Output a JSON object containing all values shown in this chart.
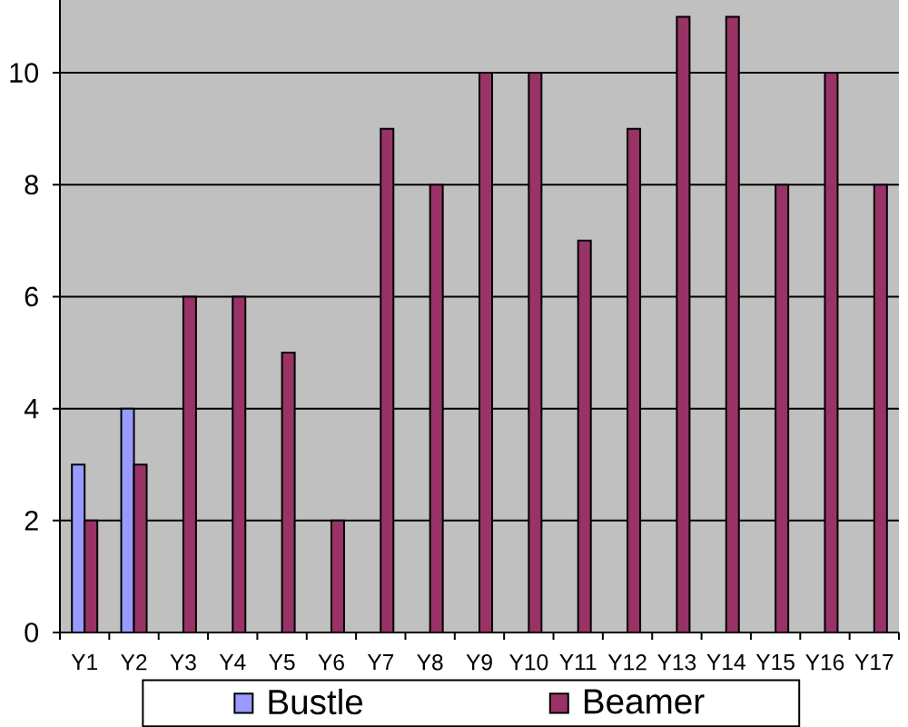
{
  "chart_data": {
    "type": "bar",
    "categories": [
      "Y1",
      "Y2",
      "Y3",
      "Y4",
      "Y5",
      "Y6",
      "Y7",
      "Y8",
      "Y9",
      "Y10",
      "Y11",
      "Y12",
      "Y13",
      "Y14",
      "Y15",
      "Y16",
      "Y17"
    ],
    "series": [
      {
        "name": "Bustle",
        "color": "#9999ff",
        "values": [
          3,
          4,
          null,
          null,
          null,
          null,
          null,
          null,
          null,
          null,
          null,
          null,
          null,
          null,
          null,
          null,
          null
        ]
      },
      {
        "name": "Beamer",
        "color": "#993366",
        "values": [
          2,
          3,
          6,
          6,
          5,
          2,
          9,
          8,
          10,
          10,
          7,
          9,
          11,
          11,
          8,
          10,
          8
        ]
      }
    ],
    "ylim": [
      0,
      11.3
    ],
    "yticks": [
      0,
      2,
      4,
      6,
      8,
      10
    ],
    "grid": "y",
    "legend": "bottom"
  }
}
